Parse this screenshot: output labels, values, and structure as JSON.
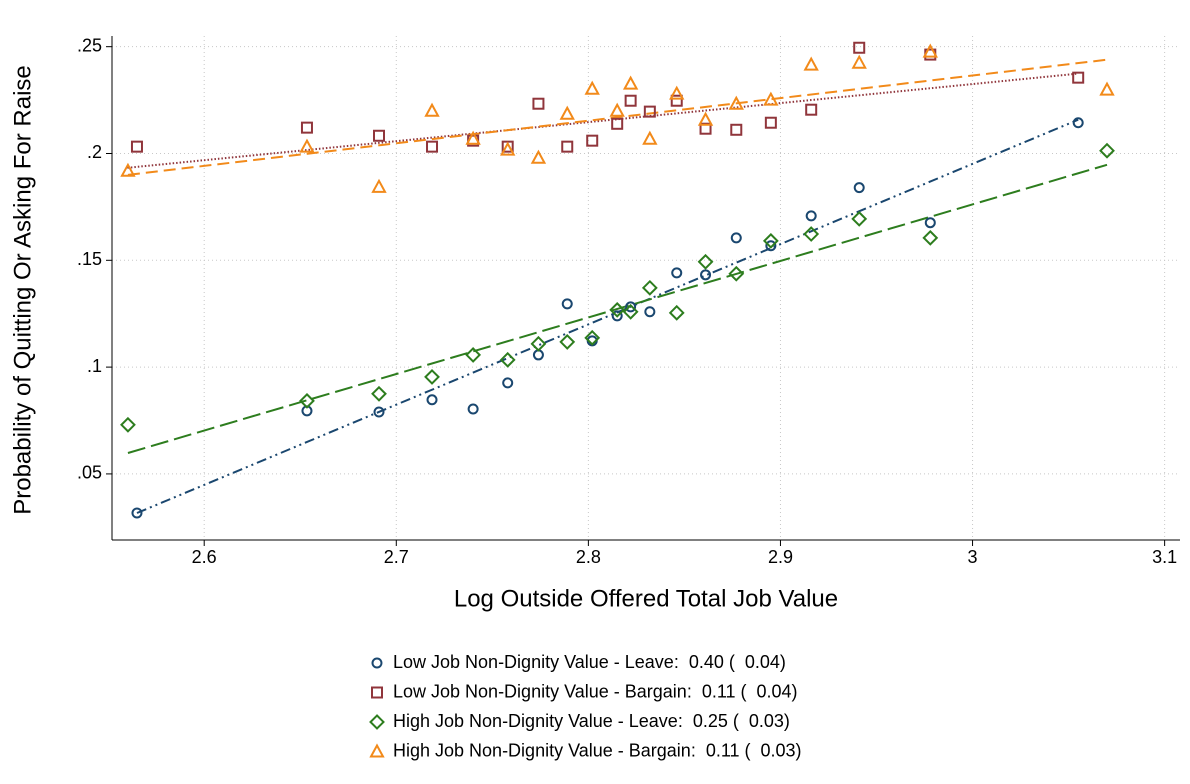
{
  "chart_data": {
    "type": "scatter",
    "xlabel": "Log Outside Offered Total Job Value",
    "ylabel": "Probability of Quitting Or Asking For Raise",
    "xlim": [
      2.552,
      3.108
    ],
    "ylim": [
      0.02,
      0.255
    ],
    "xticks": [
      2.6,
      2.7,
      2.8,
      2.9,
      3,
      3.1
    ],
    "yticks": [
      {
        "value": 0.05,
        "label": ".05"
      },
      {
        "value": 0.1,
        "label": ".1"
      },
      {
        "value": 0.15,
        "label": ".15"
      },
      {
        "value": 0.2,
        "label": ".2"
      },
      {
        "value": 0.25,
        "label": ".25"
      }
    ],
    "grid": true,
    "legend": "bottom",
    "series": [
      {
        "name": "Low Job Non-Dignity Value - Leave:  0.40 (  0.04)",
        "color": "#1a476f",
        "marker": "circle",
        "x": [
          2.565,
          2.6535,
          2.691,
          2.7186,
          2.74,
          2.758,
          2.774,
          2.789,
          2.802,
          2.815,
          2.822,
          2.832,
          2.846,
          2.861,
          2.877,
          2.895,
          2.916,
          2.941,
          2.978,
          3.055
        ],
        "values": [
          0.0317,
          0.0795,
          0.079,
          0.0847,
          0.0804,
          0.0926,
          0.1057,
          0.1296,
          0.1123,
          0.124,
          0.1282,
          0.1259,
          0.1441,
          0.1432,
          0.1605,
          0.1568,
          0.1708,
          0.184,
          0.1676,
          0.2144
        ],
        "fit": {
          "x": [
            2.565,
            3.055
          ],
          "values": [
            0.0317,
            0.2158
          ]
        }
      },
      {
        "name": "Low Job Non-Dignity Value - Bargain:  0.11 (  0.04)",
        "color": "#90353b",
        "marker": "square",
        "x": [
          2.565,
          2.6535,
          2.691,
          2.7186,
          2.74,
          2.758,
          2.774,
          2.789,
          2.802,
          2.815,
          2.822,
          2.832,
          2.846,
          2.861,
          2.877,
          2.895,
          2.916,
          2.941,
          2.978,
          3.055
        ],
        "values": [
          0.2032,
          0.2121,
          0.2083,
          0.2032,
          0.206,
          0.2032,
          0.2233,
          0.2032,
          0.206,
          0.2139,
          0.2247,
          0.2196,
          0.2247,
          0.2116,
          0.2111,
          0.2144,
          0.2205,
          0.2495,
          0.2463,
          0.2355
        ],
        "fit": {
          "x": [
            2.56,
            3.055
          ],
          "values": [
            0.1933,
            0.2374
          ]
        }
      },
      {
        "name": "High Job Non-Dignity Value - Leave:  0.25 (  0.03)",
        "color": "#2d7d1e",
        "marker": "diamond",
        "x": [
          2.5603,
          2.6535,
          2.691,
          2.7186,
          2.74,
          2.758,
          2.774,
          2.789,
          2.802,
          2.815,
          2.822,
          2.832,
          2.846,
          2.861,
          2.877,
          2.895,
          2.916,
          2.941,
          2.978,
          3.07
        ],
        "values": [
          0.073,
          0.0842,
          0.0875,
          0.0954,
          0.1057,
          0.1034,
          0.1109,
          0.1118,
          0.1137,
          0.1268,
          0.1259,
          0.1371,
          0.1254,
          0.1493,
          0.1437,
          0.1591,
          0.1623,
          0.1694,
          0.1605,
          0.2013
        ],
        "fit": {
          "x": [
            2.5603,
            3.07
          ],
          "values": [
            0.0598,
            0.1947
          ]
        }
      },
      {
        "name": "High Job Non-Dignity Value - Bargain:  0.11 (  0.03)",
        "color": "#f28a1a",
        "marker": "triangle",
        "x": [
          2.5603,
          2.6535,
          2.691,
          2.7186,
          2.74,
          2.758,
          2.774,
          2.789,
          2.802,
          2.815,
          2.822,
          2.832,
          2.846,
          2.861,
          2.877,
          2.895,
          2.916,
          2.941,
          2.978,
          3.07
        ],
        "values": [
          0.1919,
          0.2032,
          0.1844,
          0.22,
          0.2069,
          0.2018,
          0.198,
          0.2186,
          0.2303,
          0.22,
          0.2327,
          0.2069,
          0.228,
          0.2158,
          0.2233,
          0.2252,
          0.2416,
          0.2425,
          0.2477,
          0.2299
        ],
        "fit": {
          "x": [
            2.5603,
            3.07
          ],
          "values": [
            0.19,
            0.2439
          ]
        }
      }
    ]
  }
}
